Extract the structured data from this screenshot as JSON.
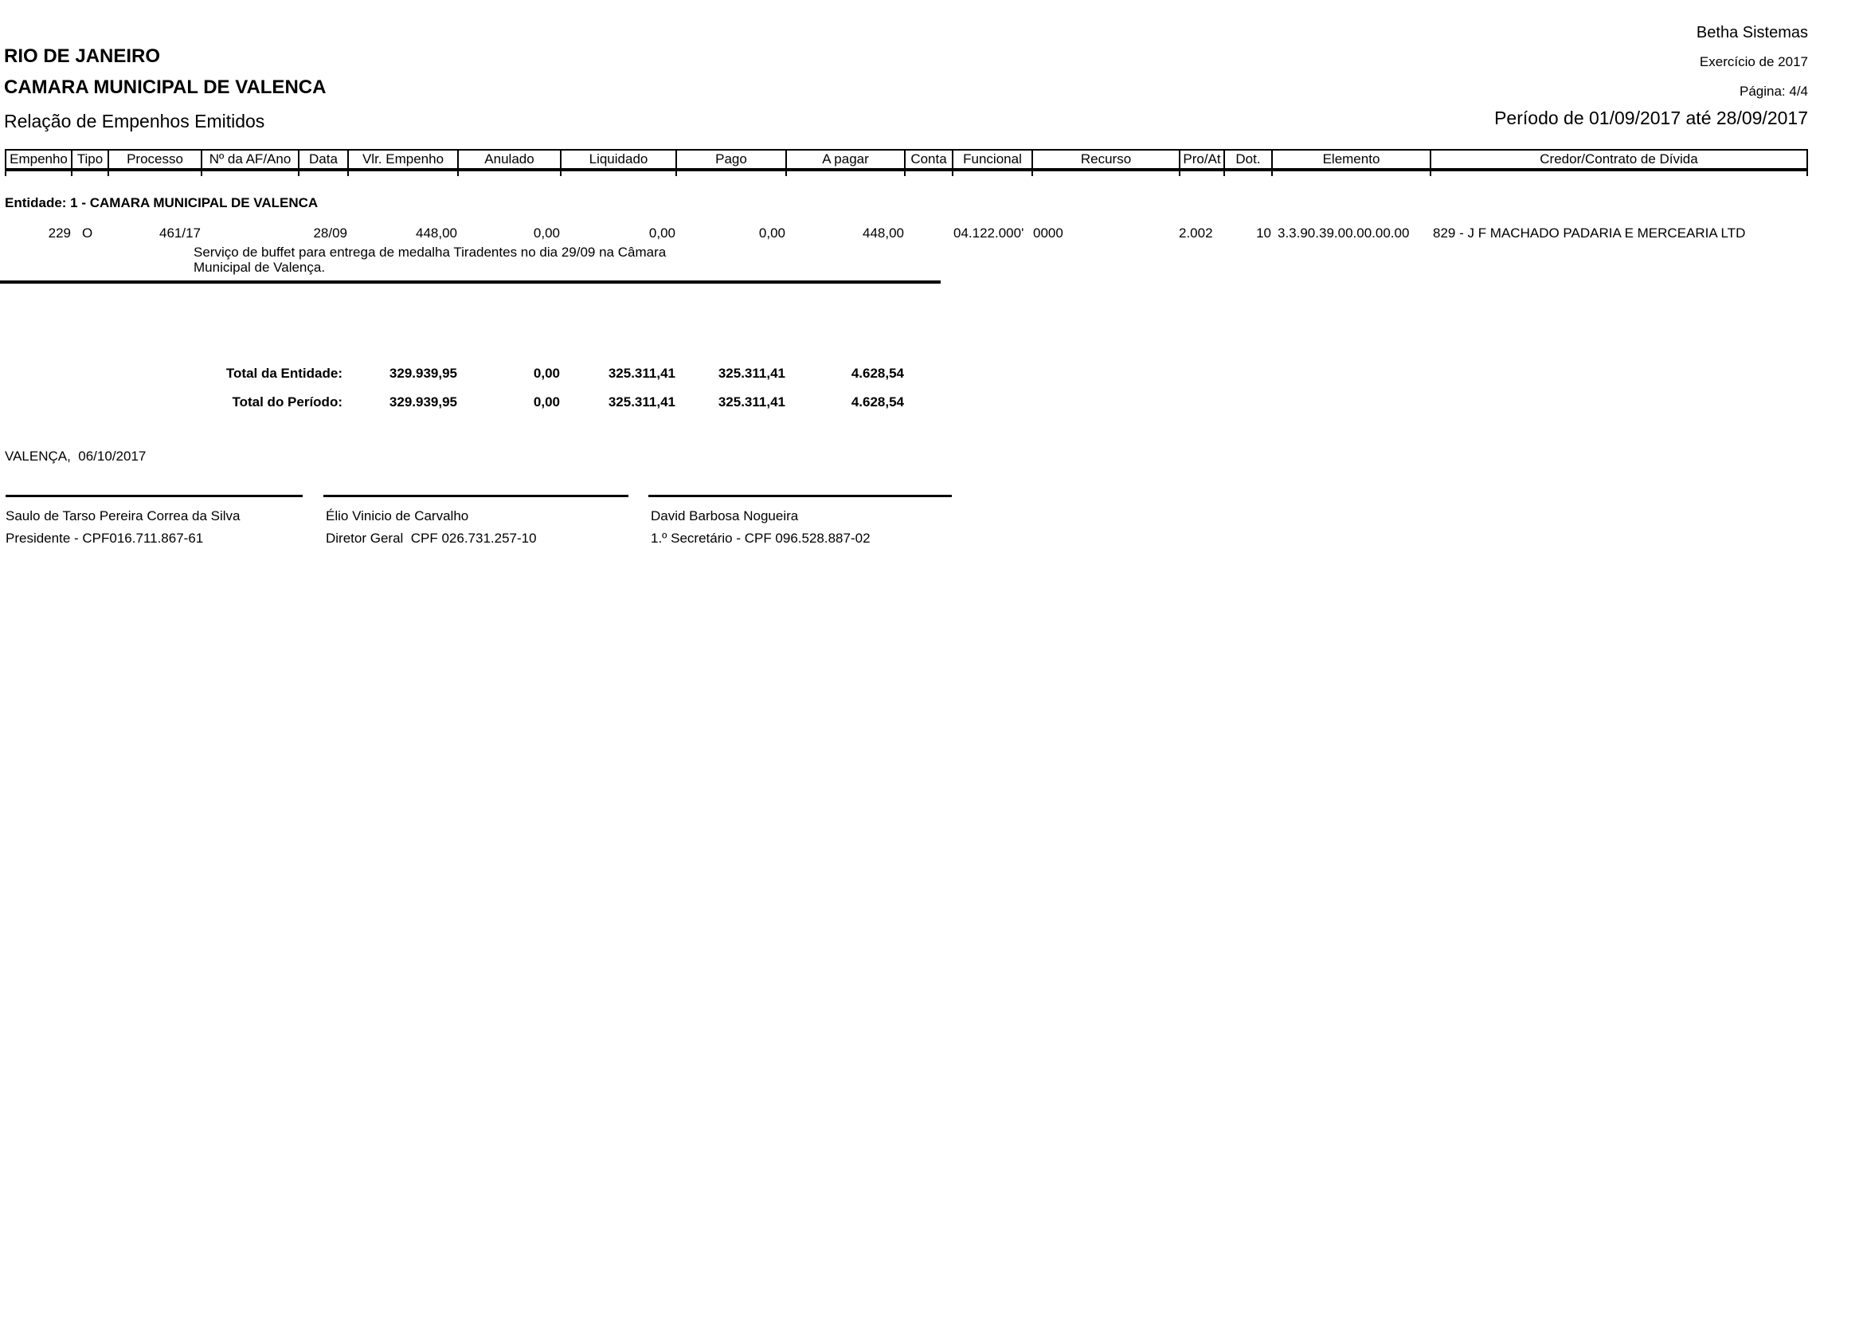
{
  "page": {
    "vendor": "Betha Sistemas",
    "state": "RIO DE JANEIRO",
    "exercise": "Exercício de 2017",
    "entity_name": "CAMARA MUNICIPAL DE VALENCA",
    "page_number": "Página: 4/4",
    "report_title": "Relação de Empenhos Emitidos",
    "period": "Período de 01/09/2017 até 28/09/2017"
  },
  "table": {
    "columns": [
      "Empenho",
      "Tipo",
      "Processo",
      "Nº da AF/Ano",
      "Data",
      "Vlr. Empenho",
      "Anulado",
      "Liquidado",
      "Pago",
      "A pagar",
      "Conta",
      "Funcional",
      "Recurso",
      "Pro/At",
      "Dot.",
      "Elemento",
      "Credor/Contrato de Dívida"
    ],
    "entity_header": "Entidade: 1 - CAMARA MUNICIPAL DE VALENCA",
    "rows": [
      {
        "empenho": "229",
        "tipo": "O",
        "processo": "461/17",
        "af_ano": "",
        "data": "28/09",
        "vlr_empenho": "448,00",
        "anulado": "0,00",
        "liquidado": "0,00",
        "pago": "0,00",
        "a_pagar": "448,00",
        "conta": "",
        "funcional": "04.122.000'",
        "recurso": "0000",
        "pro_at": "2.002",
        "dot": "10",
        "elemento": "3.3.90.39.00.00.00.00",
        "credor": "829 - J F MACHADO PADARIA E MERCEARIA LTD",
        "descricao": "Serviço de buffet para entrega de medalha Tiradentes no dia 29/09 na Câmara Municipal de Valença."
      }
    ],
    "totals": [
      {
        "label": "Total da Entidade:",
        "vlr_empenho": "329.939,95",
        "anulado": "0,00",
        "liquidado": "325.311,41",
        "pago": "325.311,41",
        "a_pagar": "4.628,54"
      },
      {
        "label": "Total do Período:",
        "vlr_empenho": "329.939,95",
        "anulado": "0,00",
        "liquidado": "325.311,41",
        "pago": "325.311,41",
        "a_pagar": "4.628,54"
      }
    ]
  },
  "footer": {
    "place_date": "VALENÇA,  06/10/2017",
    "signatures": [
      {
        "name": "Saulo de Tarso Pereira Correa da Silva",
        "title": "Presidente - CPF016.711.867-61"
      },
      {
        "name": "Élio Vinicio de Carvalho",
        "title": "Diretor Geral  CPF 026.731.257-10"
      },
      {
        "name": "David Barbosa Nogueira",
        "title": "1.º Secretário - CPF 096.528.887-02"
      }
    ]
  }
}
